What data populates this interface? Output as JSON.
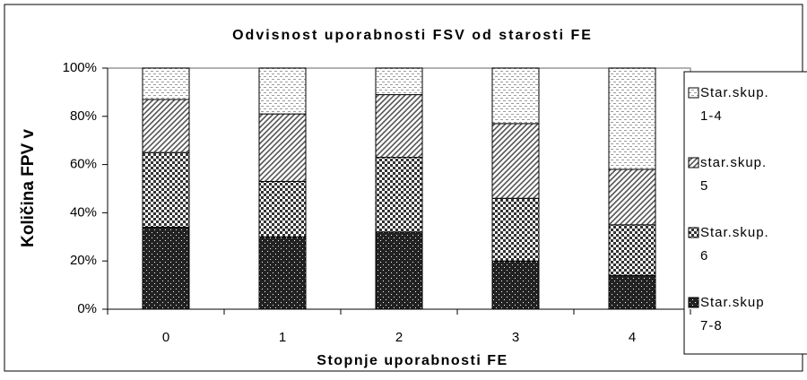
{
  "chart_data": {
    "type": "bar",
    "stacked": true,
    "title": "Odvisnost uporabnosti FSV od starosti FE",
    "x_label": "Stopnje uporabnosti FE",
    "y_label": "Količina FPV v",
    "categories": [
      "0",
      "1",
      "2",
      "3",
      "4"
    ],
    "series": [
      {
        "name": "Star.skup. 1-4",
        "color": "#9a9a9a",
        "values": [
          13,
          19,
          11,
          23,
          42
        ]
      },
      {
        "name": "star.skup. 5",
        "color": "#555555",
        "values": [
          22,
          28,
          26,
          31,
          23
        ]
      },
      {
        "name": "Star.skup. 6",
        "color": "#333333",
        "values": [
          31,
          23,
          31,
          26,
          21
        ]
      },
      {
        "name": "Star.skup 7-8",
        "color": "#222222",
        "values": [
          34,
          30,
          32,
          20,
          14
        ]
      }
    ],
    "ylim": [
      0,
      100
    ],
    "yticks": [
      {
        "value": 0,
        "label": "0%"
      },
      {
        "value": 20,
        "label": "20%"
      },
      {
        "value": 40,
        "label": "40%"
      },
      {
        "value": 60,
        "label": "60%"
      },
      {
        "value": 80,
        "label": "80%"
      },
      {
        "value": 100,
        "label": "100%"
      }
    ],
    "grid": false,
    "legend": "right"
  }
}
